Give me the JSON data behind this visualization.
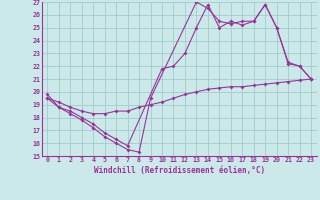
{
  "xlabel": "Windchill (Refroidissement éolien,°C)",
  "xlim": [
    -0.5,
    23.5
  ],
  "ylim": [
    15,
    27
  ],
  "yticks": [
    15,
    16,
    17,
    18,
    19,
    20,
    21,
    22,
    23,
    24,
    25,
    26,
    27
  ],
  "xticks": [
    0,
    1,
    2,
    3,
    4,
    5,
    6,
    7,
    8,
    9,
    10,
    11,
    12,
    13,
    14,
    15,
    16,
    17,
    18,
    19,
    20,
    21,
    22,
    23
  ],
  "bg_color": "#cbe9e9",
  "line_color": "#993399",
  "grid_color": "#a0cccc",
  "line1_x": [
    0,
    1,
    2,
    3,
    4,
    5,
    6,
    7,
    8,
    9,
    13,
    14,
    15,
    16,
    17,
    18,
    19,
    20,
    21,
    22,
    23
  ],
  "line1_y": [
    19.8,
    18.8,
    18.3,
    17.8,
    17.2,
    16.5,
    16.0,
    15.5,
    15.3,
    19.5,
    27.0,
    26.5,
    25.5,
    25.3,
    25.5,
    25.5,
    26.8,
    25.0,
    22.3,
    22.0,
    21.0
  ],
  "line2_x": [
    0,
    1,
    2,
    3,
    4,
    5,
    6,
    7,
    10,
    11,
    12,
    13,
    14,
    15,
    16,
    17,
    18,
    19,
    20,
    21,
    22,
    23
  ],
  "line2_y": [
    19.5,
    18.8,
    18.5,
    18.0,
    17.5,
    16.8,
    16.3,
    15.8,
    21.8,
    22.0,
    23.0,
    25.0,
    26.8,
    25.0,
    25.5,
    25.2,
    25.5,
    26.8,
    25.0,
    22.2,
    22.0,
    21.0
  ],
  "line3_x": [
    0,
    1,
    2,
    3,
    4,
    5,
    6,
    7,
    8,
    9,
    10,
    11,
    12,
    13,
    14,
    15,
    16,
    17,
    18,
    19,
    20,
    21,
    22,
    23
  ],
  "line3_y": [
    19.5,
    19.2,
    18.8,
    18.5,
    18.3,
    18.3,
    18.5,
    18.5,
    18.8,
    19.0,
    19.2,
    19.5,
    19.8,
    20.0,
    20.2,
    20.3,
    20.4,
    20.4,
    20.5,
    20.6,
    20.7,
    20.8,
    20.9,
    21.0
  ]
}
